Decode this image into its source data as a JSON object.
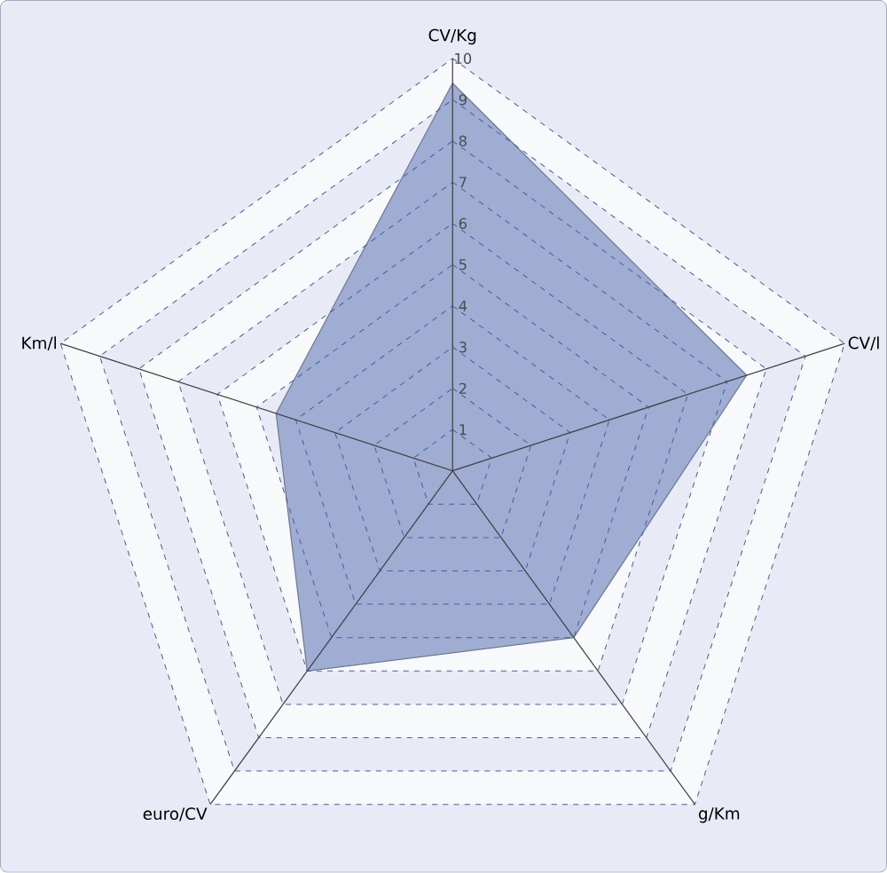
{
  "chart_data": {
    "type": "radar",
    "categories": [
      "CV/Kg",
      "CV/l",
      "g/Km",
      "euro/CV",
      "Km/l"
    ],
    "series": [
      {
        "color": "#9fadd3",
        "values": [
          9.4,
          7.5,
          5.0,
          6.0,
          4.5
        ]
      }
    ],
    "ylim": [
      0,
      10
    ],
    "yticks": [
      1,
      2,
      3,
      4,
      5,
      6,
      7,
      8,
      9,
      10
    ],
    "grid": true
  }
}
